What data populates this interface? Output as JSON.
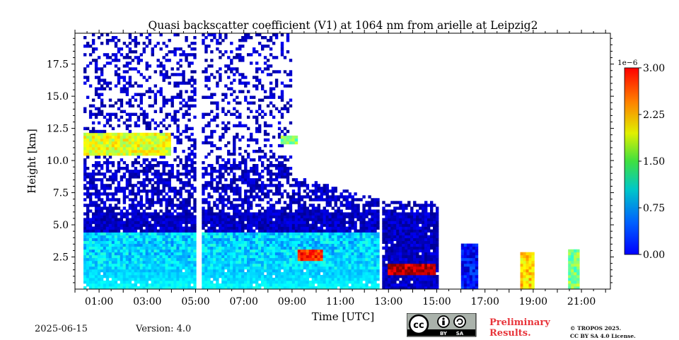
{
  "chart_data": {
    "type": "heatmap",
    "title": "Quasi backscatter coefficient (V1) at 1064 nm from arielle at Leipzig2",
    "xlabel": "Time [UTC]",
    "ylabel": "Height [km]",
    "xlim": [
      0,
      22.2
    ],
    "ylim": [
      0,
      19.9
    ],
    "x_ticks": [
      1,
      3,
      5,
      7,
      9,
      11,
      13,
      15,
      17,
      19,
      21
    ],
    "x_tick_labels": [
      "01:00",
      "03:00",
      "05:00",
      "07:00",
      "09:00",
      "11:00",
      "13:00",
      "15:00",
      "17:00",
      "19:00",
      "21:00"
    ],
    "y_ticks": [
      2.5,
      5.0,
      7.5,
      10.0,
      12.5,
      15.0,
      17.5
    ],
    "y_tick_labels": [
      "2.5",
      "5.0",
      "7.5",
      "10.0",
      "12.5",
      "15.0",
      "17.5"
    ],
    "colorbar": {
      "min": 0.0,
      "max": 3.0,
      "scale_label": "1e−6",
      "ticks": [
        0.0,
        0.75,
        1.5,
        2.25,
        3.0
      ],
      "tick_labels": [
        "0.00",
        "0.75",
        "1.50",
        "2.25",
        "3.00"
      ],
      "colormap": "jet"
    },
    "data_gaps_hours": [
      [
        0.05,
        0.3
      ],
      [
        5.0,
        5.2
      ],
      [
        12.62,
        12.75
      ]
    ],
    "features": [
      {
        "label": "boundary layer",
        "time_range": [
          0,
          12.6
        ],
        "height_km": [
          1.5,
          4.5
        ],
        "value_approx": 1.0
      },
      {
        "label": "cirrus",
        "time_range": [
          0.3,
          4.0
        ],
        "height_km": [
          10.5,
          12.2
        ],
        "value_approx": 1.8
      },
      {
        "label": "cirrus",
        "time_range": [
          8.5,
          9.2
        ],
        "height_km": [
          11.3,
          12.0
        ],
        "value_approx": 1.5
      },
      {
        "label": "low cloud",
        "time_range": [
          9.2,
          10.3
        ],
        "height_km": [
          2.3,
          3.0
        ],
        "value_approx": 2.5
      },
      {
        "label": "low cloud",
        "time_range": [
          13.0,
          14.9
        ],
        "height_km": [
          1.2,
          2.0
        ],
        "value_approx": 2.8
      },
      {
        "label": "cloud column",
        "time_range": [
          16.0,
          16.7
        ],
        "height_km": [
          0,
          3.6
        ],
        "value_approx": 0.4
      },
      {
        "label": "low cloud",
        "time_range": [
          18.5,
          19.0
        ],
        "height_km": [
          0,
          2.8
        ],
        "value_approx": 2.0
      },
      {
        "label": "low cloud",
        "time_range": [
          20.4,
          20.9
        ],
        "height_km": [
          0,
          3.0
        ],
        "value_approx": 1.5
      }
    ]
  },
  "footer": {
    "date": "2025-06-15",
    "version": "Version: 4.0",
    "preliminary_line1": "Preliminary",
    "preliminary_line2": "Results.",
    "copyright_line1": "© TROPOS 2025.",
    "copyright_line2": "CC BY SA 4.0 License.",
    "license_badge": {
      "cc": "cc",
      "by": "BY",
      "sa": "SA"
    }
  }
}
